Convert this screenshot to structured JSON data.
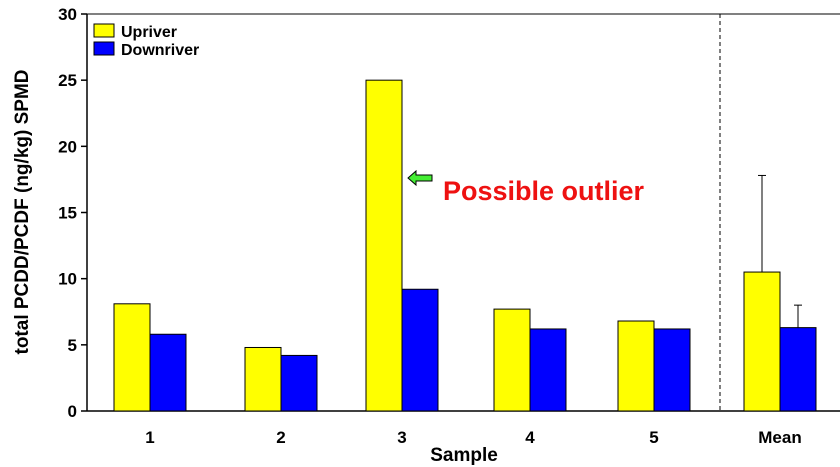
{
  "chart_data": {
    "type": "bar",
    "categories": [
      "1",
      "2",
      "3",
      "4",
      "5",
      "Mean"
    ],
    "series": [
      {
        "name": "Upriver",
        "color": "#ffff00",
        "values": [
          8.1,
          4.8,
          25.0,
          7.7,
          6.8,
          10.5
        ]
      },
      {
        "name": "Downriver",
        "color": "#0000ff",
        "values": [
          5.8,
          4.2,
          9.2,
          6.2,
          6.2,
          6.3
        ]
      }
    ],
    "error_bars": {
      "category": "Mean",
      "upper": {
        "Upriver": 17.8,
        "Downriver": 8.0
      }
    },
    "title": "",
    "xlabel": "Sample",
    "ylabel": "total PCDD/PCDF (ng/kg) SPMD",
    "ylim": [
      0,
      30
    ],
    "yticks": [
      "0",
      "5",
      "10",
      "15",
      "20",
      "25",
      "30"
    ],
    "grid": false,
    "legend": {
      "position": "top-left"
    },
    "annotation": {
      "text": "Possible outlier",
      "color": "#ee1111",
      "arrow_color": "#44ee33",
      "target_category": "3"
    },
    "separator": {
      "between": [
        "5",
        "Mean"
      ],
      "style": "dashed"
    }
  }
}
